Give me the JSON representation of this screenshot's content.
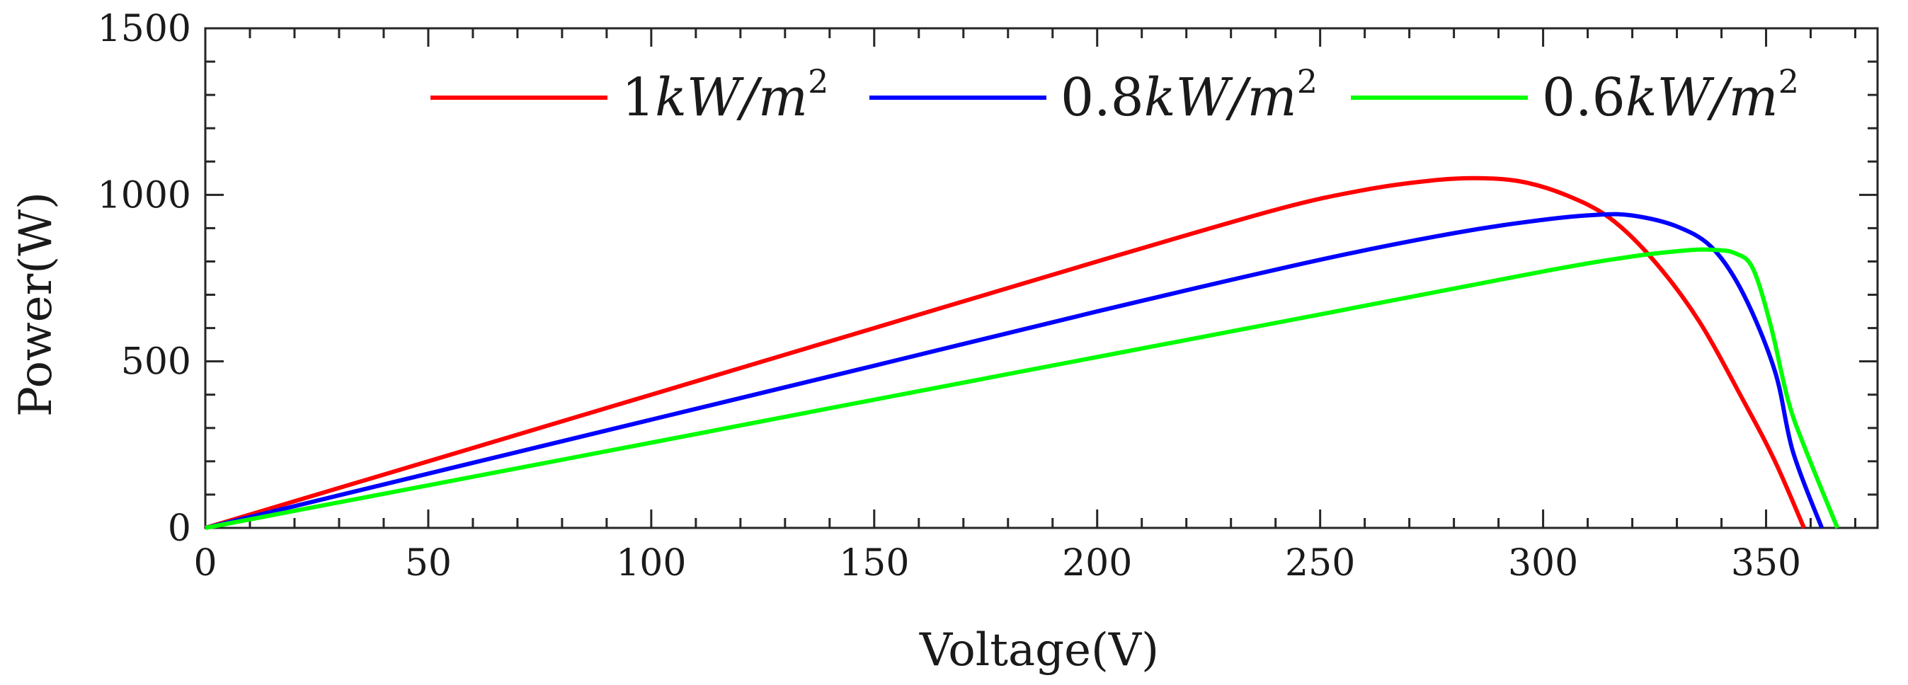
{
  "chart_data": {
    "type": "line",
    "title": "",
    "xlabel": "Voltage(V)",
    "ylabel": "Power(W)",
    "xlim": [
      0,
      375
    ],
    "ylim": [
      0,
      1500
    ],
    "xticks": [
      0,
      50,
      100,
      150,
      200,
      250,
      300,
      350
    ],
    "yticks": [
      0,
      500,
      1000,
      1500
    ],
    "xtick_labels": [
      "0",
      "50",
      "100",
      "150",
      "200",
      "250",
      "300",
      "350"
    ],
    "ytick_labels": [
      "0",
      "500",
      "1000",
      "1500"
    ],
    "grid": false,
    "legend": {
      "placement": "top-right",
      "orientation": "horizontal"
    },
    "series": [
      {
        "name": "1kW/m2",
        "label_num": "1",
        "label_var": "kW/m",
        "label_sup": "2",
        "color": "#ff0000",
        "x": [
          0,
          50,
          100,
          150,
          200,
          240,
          260,
          275,
          285,
          295,
          305,
          315,
          325,
          335,
          345,
          352,
          358.5
        ],
        "y": [
          0,
          200,
          400,
          600,
          800,
          955,
          1015,
          1043,
          1050,
          1040,
          1000,
          930,
          800,
          620,
          380,
          200,
          0
        ]
      },
      {
        "name": "0.8kW/m2",
        "label_num": "0.8",
        "label_var": "kW/m",
        "label_sup": "2",
        "color": "#0000ff",
        "x": [
          0,
          50,
          100,
          150,
          200,
          250,
          280,
          300,
          312,
          320,
          330,
          338,
          345,
          352,
          356,
          362.5
        ],
        "y": [
          0,
          163,
          325,
          487,
          650,
          805,
          885,
          925,
          940,
          938,
          905,
          840,
          700,
          470,
          230,
          0
        ]
      },
      {
        "name": "0.6kW/m2",
        "label_num": "0.6",
        "label_var": "kW/m",
        "label_sup": "2",
        "color": "#00ff00",
        "x": [
          0,
          50,
          100,
          150,
          200,
          250,
          300,
          320,
          332,
          338,
          343,
          347,
          351,
          355,
          359,
          366
        ],
        "y": [
          0,
          128,
          256,
          385,
          513,
          641,
          770,
          815,
          833,
          835,
          825,
          780,
          610,
          380,
          230,
          0
        ]
      }
    ]
  }
}
